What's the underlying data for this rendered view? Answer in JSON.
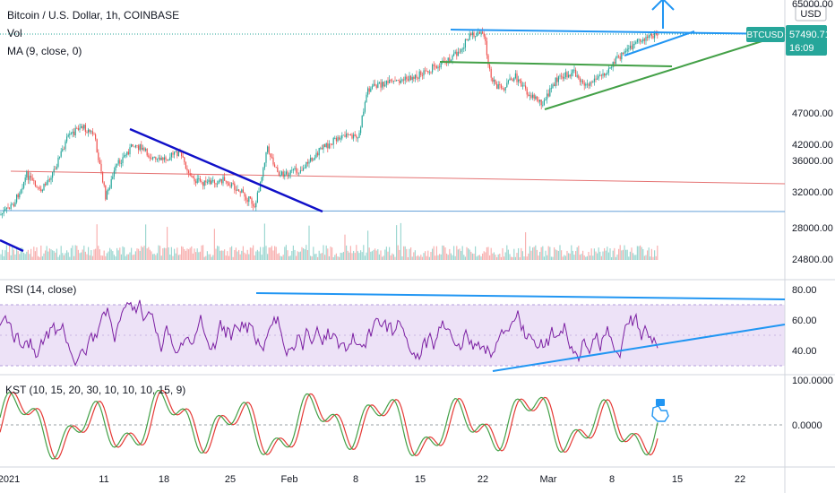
{
  "header": {
    "symbol_title": "Bitcoin / U.S. Dollar, 1h, COINBASE",
    "vol_label": "Vol",
    "ma_label": "MA (9, close, 0)",
    "currency": "USD"
  },
  "price_badge": {
    "symbol": "BTCUSD",
    "price": "57490.71",
    "countdown": "16:09"
  },
  "colors": {
    "up": "#26a69a",
    "down": "#ef5350",
    "rsi": "#7b1fa2",
    "rsi_band": "#ede2f7",
    "trend_blue": "#2196f3",
    "trend_dark": "#1010c8",
    "trend_green": "#43a047",
    "support_red": "#e57373",
    "support_blue": "#64a0d8",
    "kst_green": "#43a047",
    "kst_red": "#e53935"
  },
  "chart_data": [
    {
      "type": "candlestick",
      "ylim": [
        24800,
        65000
      ],
      "price_ticks": [
        "65000.00",
        "47000.00",
        "42000.00",
        "36000.00",
        "32000.00",
        "28000.00",
        "24800.00"
      ],
      "time_ticks": [
        "2021",
        "11",
        "18",
        "25",
        "Feb",
        "8",
        "15",
        "22",
        "Mar",
        "8",
        "15",
        "22"
      ],
      "legend": [
        "Vol",
        "MA (9, close, 0)"
      ],
      "last_price": 57490.71,
      "trend_lines": [
        {
          "name": "upper-resistance",
          "color": "trend_blue"
        },
        {
          "name": "descending-wedge-top",
          "color": "trend_dark"
        },
        {
          "name": "rising-channel-green",
          "color": "trend_green"
        },
        {
          "name": "horizontal-support",
          "color": "support_red"
        }
      ],
      "annotation": "breakout-arrow"
    },
    {
      "type": "line",
      "title": "RSI (14, close)",
      "ylim": [
        25,
        85
      ],
      "ticks": [
        "80.00",
        "60.00",
        "40.00"
      ],
      "band": [
        30,
        70
      ]
    },
    {
      "type": "line",
      "title": "KST (10, 15, 20, 30, 10, 10, 10, 15, 9)",
      "ticks": [
        "100.0000",
        "0.0000"
      ]
    }
  ]
}
